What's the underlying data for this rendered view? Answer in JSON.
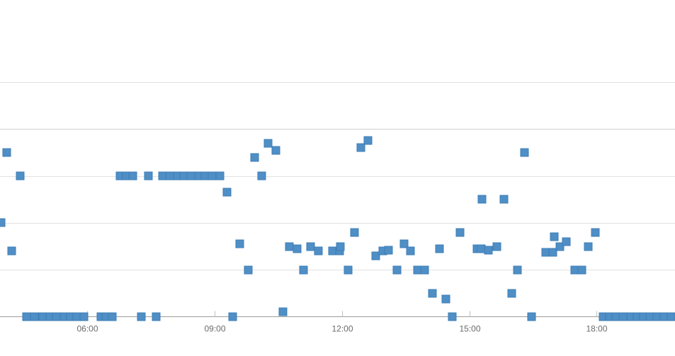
{
  "chart_data": {
    "type": "scatter",
    "title": "",
    "xlabel": "",
    "ylabel": "",
    "x_unit": "hours",
    "x_ticks": [
      {
        "value": 6,
        "label": "06:00"
      },
      {
        "value": 9,
        "label": "09:00"
      },
      {
        "value": 12,
        "label": "12:00"
      },
      {
        "value": 15,
        "label": "15:00"
      },
      {
        "value": 18,
        "label": "18:00"
      }
    ],
    "xlim": [
      4.0,
      19.85
    ],
    "ylim": [
      0,
      5
    ],
    "y_gridlines": [
      1,
      2,
      3,
      4,
      5
    ],
    "y_tick_labels_visible": false,
    "grid": true,
    "legend": "none",
    "colors": {
      "point": "#4f8fc6",
      "point_stroke": "#3e7db5",
      "grid": "#e2e2e2",
      "baseline": "#9c9c9c",
      "tick_label": "#6b6b6b"
    },
    "series": [
      {
        "points": [
          [
            3.98,
            2.0
          ],
          [
            4.1,
            3.5
          ],
          [
            4.22,
            1.4
          ],
          [
            4.42,
            3.0
          ],
          [
            4.58,
            0
          ],
          [
            4.75,
            0
          ],
          [
            4.95,
            0
          ],
          [
            5.12,
            0
          ],
          [
            5.28,
            0
          ],
          [
            5.45,
            0
          ],
          [
            5.6,
            0
          ],
          [
            5.75,
            0
          ],
          [
            5.93,
            0
          ],
          [
            6.32,
            0
          ],
          [
            6.45,
            0
          ],
          [
            6.6,
            0
          ],
          [
            6.77,
            3.0
          ],
          [
            6.92,
            3.0
          ],
          [
            7.08,
            3.0
          ],
          [
            7.27,
            0
          ],
          [
            7.45,
            3.0
          ],
          [
            7.63,
            0
          ],
          [
            7.78,
            3.0
          ],
          [
            7.95,
            3.0
          ],
          [
            8.12,
            3.0
          ],
          [
            8.28,
            3.0
          ],
          [
            8.45,
            3.0
          ],
          [
            8.62,
            3.0
          ],
          [
            8.78,
            3.0
          ],
          [
            8.95,
            3.0
          ],
          [
            9.12,
            3.0
          ],
          [
            9.3,
            2.65
          ],
          [
            9.43,
            0
          ],
          [
            9.6,
            1.55
          ],
          [
            9.8,
            1.0
          ],
          [
            9.95,
            3.4
          ],
          [
            10.12,
            3.0
          ],
          [
            10.27,
            3.7
          ],
          [
            10.45,
            3.55
          ],
          [
            10.62,
            0.1
          ],
          [
            10.77,
            1.5
          ],
          [
            10.95,
            1.45
          ],
          [
            11.1,
            1.0
          ],
          [
            11.27,
            1.5
          ],
          [
            11.45,
            1.4
          ],
          [
            11.78,
            1.4
          ],
          [
            11.95,
            1.4
          ],
          [
            11.97,
            1.5
          ],
          [
            12.15,
            1.0
          ],
          [
            12.3,
            1.8
          ],
          [
            12.45,
            3.6
          ],
          [
            12.62,
            3.75
          ],
          [
            12.8,
            1.3
          ],
          [
            12.97,
            1.4
          ],
          [
            13.1,
            1.42
          ],
          [
            13.3,
            1.0
          ],
          [
            13.47,
            1.55
          ],
          [
            13.62,
            1.4
          ],
          [
            13.78,
            1.0
          ],
          [
            13.95,
            1.0
          ],
          [
            14.13,
            0.5
          ],
          [
            14.3,
            1.45
          ],
          [
            14.45,
            0.37
          ],
          [
            14.6,
            0
          ],
          [
            14.78,
            1.8
          ],
          [
            15.18,
            1.45
          ],
          [
            15.3,
            2.5
          ],
          [
            15.28,
            1.45
          ],
          [
            15.45,
            1.42
          ],
          [
            15.65,
            1.5
          ],
          [
            15.82,
            2.5
          ],
          [
            16.0,
            0.5
          ],
          [
            16.13,
            1.0
          ],
          [
            16.3,
            3.5
          ],
          [
            16.47,
            0
          ],
          [
            16.8,
            1.37
          ],
          [
            16.97,
            1.37
          ],
          [
            17.0,
            1.7
          ],
          [
            17.13,
            1.5
          ],
          [
            17.28,
            1.6
          ],
          [
            17.48,
            1.0
          ],
          [
            17.65,
            1.0
          ],
          [
            17.8,
            1.5
          ],
          [
            17.97,
            1.8
          ],
          [
            18.15,
            0
          ],
          [
            18.3,
            0
          ],
          [
            18.45,
            0
          ],
          [
            18.62,
            0
          ],
          [
            18.8,
            0
          ],
          [
            18.95,
            0
          ],
          [
            19.1,
            0
          ],
          [
            19.25,
            0
          ],
          [
            19.42,
            0
          ],
          [
            19.58,
            0
          ],
          [
            19.75,
            0
          ]
        ]
      }
    ]
  }
}
